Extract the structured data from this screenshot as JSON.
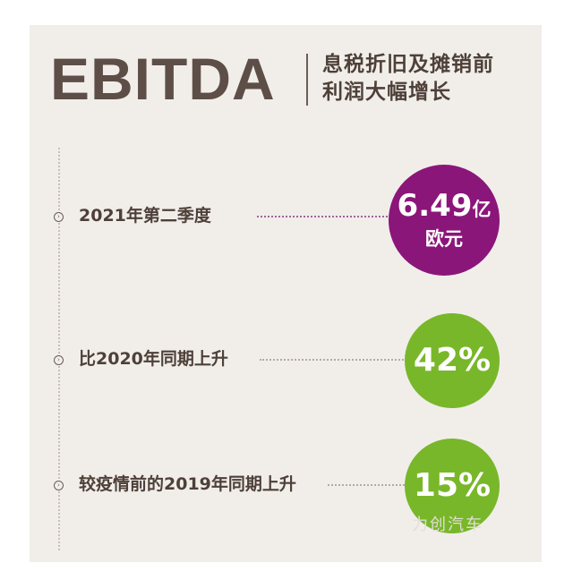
{
  "header": {
    "title": "EBITDA",
    "subtitle_line1": "息税折旧及摊销前",
    "subtitle_line2": "利润大幅增长"
  },
  "rows": [
    {
      "label": "2021年第二季度",
      "value_number": "6.49",
      "value_unit": "亿",
      "value_line2": "欧元",
      "circle_color": "#8b1679"
    },
    {
      "label": "比2020年同期上升",
      "value": "42%",
      "circle_color": "#79b72a"
    },
    {
      "label": "较疫情前的2019年同期上升",
      "value": "15%",
      "circle_color": "#79b72a"
    }
  ],
  "icons": {
    "bullet": "chevron-circle-icon"
  },
  "watermark": "力创汽车"
}
